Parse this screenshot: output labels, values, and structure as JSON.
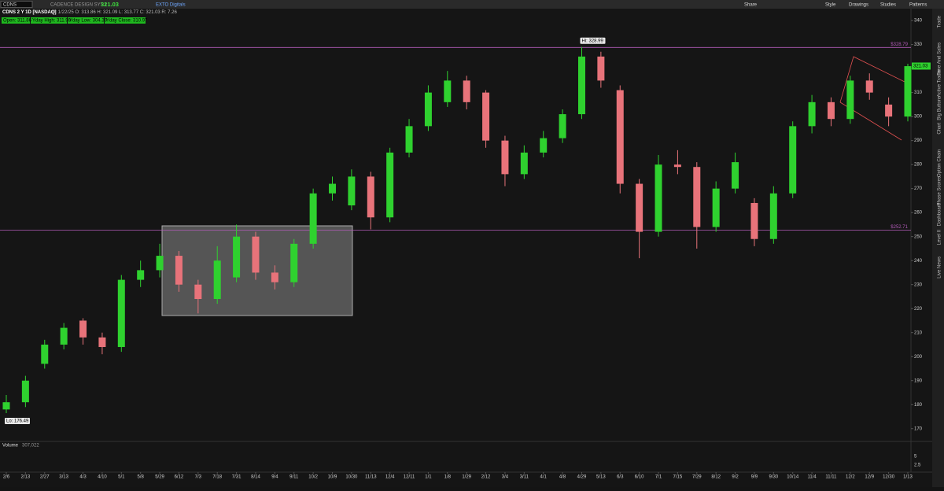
{
  "toolbar": {
    "symbol": "CDNS",
    "company": "CADENCE DESIGN SYS I",
    "last": "321.03",
    "link": "EXTO Digitals",
    "menu": [
      "Share",
      "Style",
      "Drawings",
      "Studies",
      "Patterns"
    ]
  },
  "chart_header": {
    "title": "CDNS 2 Y 1D [NASDAQ]",
    "details": "D: 1/22/25  O: 313.86  H: 321.09  L: 313.77  C: 321.03  R: 7.26",
    "studies": [
      "Open: 311.86",
      "Yday High: 311.98",
      "Yday Low: 304.39",
      "Yday Close: 310.97"
    ]
  },
  "sidebar": [
    "Trade",
    "Time And Sales",
    "Active Trader",
    "Big Buttons",
    "Chart",
    "Option Chain",
    "Phase Scores",
    "Dashboard",
    "Level II",
    "Live News"
  ],
  "volume": {
    "label": "Volume",
    "value": "307,022",
    "ticks": [
      "5",
      "2.5"
    ]
  },
  "chart_data": {
    "type": "candlestick",
    "categories": [
      "2/6",
      "2/13",
      "2/27",
      "3/13",
      "4/3",
      "4/10",
      "5/1",
      "5/8",
      "5/29",
      "6/12",
      "7/3",
      "7/18",
      "7/31",
      "8/14",
      "9/4",
      "9/11",
      "10/2",
      "10/9",
      "10/30",
      "11/13",
      "12/4",
      "12/11",
      "1/1",
      "1/8",
      "1/29",
      "2/12",
      "3/4",
      "3/11",
      "4/1",
      "4/8",
      "4/29",
      "5/13",
      "6/3",
      "6/10",
      "7/1",
      "7/15",
      "7/29",
      "8/12",
      "9/2",
      "9/9",
      "9/30",
      "10/14",
      "11/4",
      "11/11",
      "12/2",
      "12/9",
      "12/30",
      "1/13"
    ],
    "open": [
      178,
      181,
      197,
      205,
      215,
      208,
      204,
      232,
      236,
      242,
      230,
      224,
      233,
      250,
      235,
      231,
      247,
      268,
      263,
      275,
      258,
      285,
      296,
      306,
      315,
      310,
      290,
      276,
      285,
      291,
      301,
      325,
      311,
      272,
      252,
      280,
      279,
      254,
      270,
      264,
      249,
      268,
      296,
      306,
      299,
      315,
      305,
      300
    ],
    "high": [
      184,
      192,
      207,
      214,
      216,
      210,
      234,
      240,
      247,
      244,
      232,
      246,
      255,
      252,
      238,
      249,
      270,
      275,
      278,
      277,
      287,
      299,
      313,
      319,
      317,
      311,
      292,
      288,
      294,
      303,
      328.99,
      327,
      313,
      274,
      284,
      286,
      281,
      273,
      285,
      266,
      271,
      298,
      309,
      308,
      317,
      318,
      308,
      322
    ],
    "low": [
      176.49,
      179,
      195,
      203,
      205,
      201,
      202,
      229,
      233,
      227,
      218,
      222,
      231,
      232,
      228,
      229,
      245,
      265,
      261,
      253,
      256,
      283,
      294,
      304,
      303,
      287,
      271,
      274,
      283,
      289,
      299,
      312,
      268,
      241,
      250,
      276,
      245,
      252,
      268,
      246,
      247,
      266,
      293,
      296,
      297,
      307,
      296,
      298
    ],
    "close": [
      181,
      190,
      205,
      212,
      208,
      204,
      232,
      236,
      242,
      230,
      224,
      240,
      250,
      235,
      231,
      247,
      268,
      272,
      275,
      258,
      285,
      296,
      310,
      315,
      306,
      290,
      276,
      285,
      291,
      301,
      325,
      315,
      272,
      252,
      280,
      279,
      254,
      270,
      281,
      249,
      268,
      296,
      306,
      299,
      315,
      310,
      300,
      321
    ],
    "up_color": "#2fd12f",
    "down_color": "#e8737a",
    "last": 321.03,
    "last_label": "321.03",
    "levels": [
      {
        "value": 328.79,
        "label": "$328.79"
      },
      {
        "value": 252.71,
        "label": "$252.71"
      }
    ],
    "level_color": "#b25bb8",
    "annotations": [
      "Hi: 328.99",
      "Lo: 176.49"
    ],
    "ylim": [
      165,
      342
    ],
    "yticks": [
      170,
      180,
      190,
      200,
      210,
      220,
      230,
      240,
      250,
      260,
      270,
      280,
      290,
      300,
      310,
      320,
      330,
      340
    ],
    "grid": false
  }
}
